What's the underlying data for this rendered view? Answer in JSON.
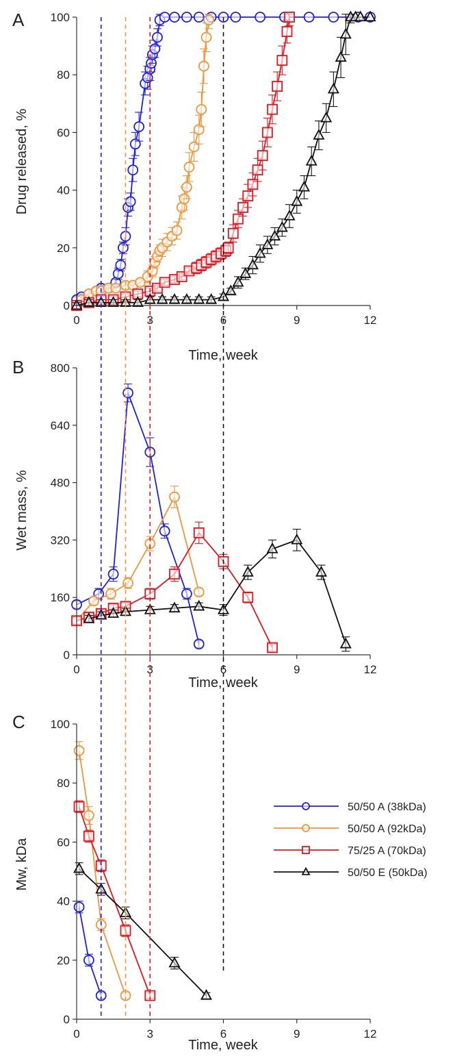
{
  "colors": {
    "blue": "#1f1fe0",
    "orange": "#f0953a",
    "red": "#e8141c",
    "black": "#111111",
    "axis": "#333333"
  },
  "legend": [
    {
      "label": "50/50 A (38kDa)",
      "color": "#1f1fe0",
      "marker": "circle"
    },
    {
      "label": "50/50 A (92kDa)",
      "color": "#f0953a",
      "marker": "circle"
    },
    {
      "label": "75/25 A (70kDa)",
      "color": "#e8141c",
      "marker": "square"
    },
    {
      "label": "50/50 E (50kDa)",
      "color": "#111111",
      "marker": "triangle"
    }
  ],
  "reference_lines": [
    {
      "x": 1,
      "color": "#1f1fe0"
    },
    {
      "x": 2,
      "color": "#f0953a"
    },
    {
      "x": 3,
      "color": "#e8141c"
    },
    {
      "x": 6,
      "color": "#111111"
    }
  ],
  "chart_data": [
    {
      "panel": "A",
      "type": "line",
      "title": "",
      "xlabel": "Time, week",
      "ylabel": "Drug released, %",
      "xlim": [
        0,
        12
      ],
      "ylim": [
        0,
        100
      ],
      "xticks": [
        0,
        3,
        6,
        9,
        12
      ],
      "yticks": [
        0,
        20,
        40,
        60,
        80,
        100
      ],
      "series": [
        {
          "color": "#1f1fe0",
          "marker": "circle",
          "x": [
            0,
            0.2,
            0.5,
            0.8,
            1.0,
            1.3,
            1.6,
            1.7,
            1.8,
            1.9,
            2.0,
            2.1,
            2.2,
            2.3,
            2.4,
            2.55,
            2.8,
            2.9,
            3.0,
            3.05,
            3.1,
            3.2,
            3.3,
            3.4,
            3.6,
            4.0,
            4.5,
            5.0,
            5.5,
            6.0,
            6.5,
            7.5,
            8.5,
            9.5,
            10.5,
            11.5,
            12.0
          ],
          "y": [
            2,
            3,
            4,
            5,
            6,
            6,
            8,
            11,
            14,
            20,
            24,
            34,
            36,
            47,
            56,
            62,
            77,
            79,
            82,
            84,
            87,
            89,
            93,
            99,
            100,
            100,
            100,
            100,
            100,
            100,
            100,
            100,
            100,
            100,
            100,
            100,
            100
          ],
          "err": [
            1,
            1,
            1,
            1,
            1,
            1,
            1,
            2,
            2,
            2,
            3,
            3,
            3,
            4,
            4,
            5,
            4,
            4,
            4,
            3,
            3,
            3,
            3,
            2,
            0,
            0,
            0,
            0,
            0,
            0,
            0,
            0,
            0,
            0,
            0,
            0,
            0
          ]
        },
        {
          "color": "#f0953a",
          "marker": "circle",
          "x": [
            0.2,
            0.5,
            0.8,
            1.0,
            1.3,
            1.6,
            2.0,
            2.3,
            2.6,
            2.9,
            3.1,
            3.2,
            3.3,
            3.4,
            3.5,
            3.7,
            3.9,
            4.1,
            4.3,
            4.4,
            4.5,
            4.6,
            4.8,
            5.0,
            5.1,
            5.2,
            5.3,
            5.4
          ],
          "y": [
            2,
            4,
            5,
            5,
            6,
            6,
            7,
            7,
            8,
            10,
            12,
            15,
            17,
            19,
            20,
            22,
            24,
            26,
            34,
            37,
            41,
            48,
            55,
            61,
            68,
            83,
            93,
            99
          ],
          "err": [
            1,
            1,
            1,
            1,
            1,
            1,
            1,
            1,
            1,
            2,
            2,
            2,
            2,
            2,
            3,
            3,
            3,
            3,
            4,
            4,
            4,
            5,
            5,
            5,
            6,
            6,
            5,
            3
          ]
        },
        {
          "color": "#e8141c",
          "marker": "square",
          "x": [
            0,
            0.5,
            1.0,
            1.5,
            2.0,
            2.5,
            3.0,
            3.3,
            3.6,
            4.0,
            4.3,
            4.6,
            4.9,
            5.1,
            5.3,
            5.5,
            5.7,
            5.9,
            6.1,
            6.2,
            6.4,
            6.6,
            6.8,
            7.0,
            7.2,
            7.4,
            7.6,
            7.8,
            8.0,
            8.2,
            8.4,
            8.6,
            8.7
          ],
          "y": [
            0,
            1,
            2,
            2,
            3,
            4,
            5,
            6,
            8,
            9,
            10,
            12,
            13,
            14,
            15,
            16,
            17,
            18,
            19,
            20,
            25,
            30,
            34,
            38,
            42,
            47,
            52,
            60,
            68,
            76,
            85,
            95,
            100
          ],
          "err": [
            1,
            1,
            1,
            1,
            1,
            1,
            1,
            1,
            1,
            1,
            1,
            1,
            2,
            2,
            2,
            2,
            2,
            2,
            2,
            2,
            3,
            3,
            3,
            4,
            4,
            4,
            5,
            5,
            5,
            5,
            5,
            4,
            3
          ]
        },
        {
          "color": "#111111",
          "marker": "triangle",
          "x": [
            0,
            0.5,
            1.0,
            1.5,
            2.0,
            2.5,
            3.0,
            3.5,
            4.0,
            4.5,
            5.0,
            5.5,
            6.0,
            6.3,
            6.6,
            6.9,
            7.2,
            7.5,
            7.8,
            8.1,
            8.4,
            8.7,
            9.0,
            9.3,
            9.6,
            9.9,
            10.2,
            10.5,
            10.8,
            11.0,
            11.2,
            11.4,
            11.6,
            12.0
          ],
          "y": [
            0,
            1,
            1,
            1,
            1,
            1,
            2,
            2,
            2,
            2,
            2,
            2,
            3,
            5,
            8,
            11,
            14,
            18,
            21,
            24,
            27,
            31,
            36,
            41,
            50,
            59,
            65,
            75,
            86,
            94,
            100,
            100,
            100,
            100
          ],
          "err": [
            1,
            1,
            1,
            1,
            1,
            1,
            1,
            1,
            1,
            1,
            1,
            1,
            1,
            1,
            2,
            2,
            3,
            3,
            3,
            3,
            3,
            4,
            4,
            4,
            5,
            5,
            5,
            6,
            7,
            7,
            2,
            0,
            0,
            0
          ]
        }
      ]
    },
    {
      "panel": "B",
      "type": "line",
      "title": "",
      "xlabel": "Time, week",
      "ylabel": "Wet mass, %",
      "xlim": [
        0,
        12
      ],
      "ylim": [
        0,
        800
      ],
      "xticks": [
        0,
        3,
        6,
        9,
        12
      ],
      "yticks": [
        0,
        160,
        320,
        480,
        640,
        800
      ],
      "series": [
        {
          "color": "#1f1fe0",
          "marker": "circle",
          "x": [
            0,
            0.9,
            1.5,
            2.1,
            3.0,
            3.6,
            4.5,
            5.0
          ],
          "y": [
            140,
            170,
            225,
            730,
            565,
            345,
            170,
            30
          ],
          "err": [
            10,
            15,
            20,
            25,
            40,
            20,
            15,
            10
          ]
        },
        {
          "color": "#f0953a",
          "marker": "circle",
          "x": [
            0,
            0.7,
            1.4,
            2.1,
            3.0,
            4.0,
            5.0
          ],
          "y": [
            95,
            150,
            170,
            200,
            310,
            440,
            175
          ],
          "err": [
            10,
            10,
            15,
            15,
            20,
            30,
            10
          ]
        },
        {
          "color": "#e8141c",
          "marker": "square",
          "x": [
            0,
            0.5,
            1.0,
            1.5,
            2.0,
            3.0,
            4.0,
            5.0,
            6.0,
            7.0,
            8.0
          ],
          "y": [
            95,
            105,
            115,
            130,
            135,
            170,
            225,
            340,
            260,
            160,
            20
          ],
          "err": [
            10,
            10,
            10,
            10,
            10,
            15,
            20,
            30,
            20,
            15,
            10
          ]
        },
        {
          "color": "#111111",
          "marker": "triangle",
          "x": [
            0.5,
            1.0,
            1.5,
            2.0,
            3.0,
            4.0,
            5.0,
            6.0,
            7.0,
            8.0,
            9.0,
            10.0,
            11.0
          ],
          "y": [
            100,
            110,
            115,
            120,
            125,
            130,
            135,
            125,
            230,
            295,
            320,
            230,
            30
          ],
          "err": [
            10,
            10,
            10,
            10,
            10,
            10,
            10,
            15,
            20,
            25,
            30,
            20,
            20
          ]
        }
      ]
    },
    {
      "panel": "C",
      "type": "line",
      "title": "",
      "xlabel": "Time, week",
      "ylabel": "Mw, kDa",
      "xlim": [
        0,
        12
      ],
      "ylim": [
        0,
        100
      ],
      "xticks": [
        0,
        3,
        6,
        9,
        12
      ],
      "yticks": [
        0,
        20,
        40,
        60,
        80,
        100
      ],
      "series": [
        {
          "name": "50/50 A (38kDa)",
          "color": "#1f1fe0",
          "marker": "circle",
          "x": [
            0.1,
            0.5,
            1.0
          ],
          "y": [
            38,
            20,
            8
          ],
          "err": [
            2,
            2,
            1
          ]
        },
        {
          "name": "50/50 A (92kDa)",
          "color": "#f0953a",
          "marker": "circle",
          "x": [
            0.1,
            0.5,
            1.0,
            2.0
          ],
          "y": [
            91,
            69,
            32,
            8
          ],
          "err": [
            3,
            3,
            2,
            1
          ]
        },
        {
          "name": "75/25 A (70kDa)",
          "color": "#e8141c",
          "marker": "square",
          "x": [
            0.1,
            0.5,
            1.0,
            2.0,
            3.0
          ],
          "y": [
            72,
            62,
            52,
            30,
            8
          ],
          "err": [
            2,
            2,
            2,
            2,
            1
          ]
        },
        {
          "name": "50/50 E (50kDa)",
          "color": "#111111",
          "marker": "triangle",
          "x": [
            0.1,
            1.0,
            2.0,
            4.0,
            5.3
          ],
          "y": [
            51,
            44,
            36,
            19,
            8
          ],
          "err": [
            2,
            2,
            2,
            2,
            1
          ]
        }
      ]
    }
  ]
}
